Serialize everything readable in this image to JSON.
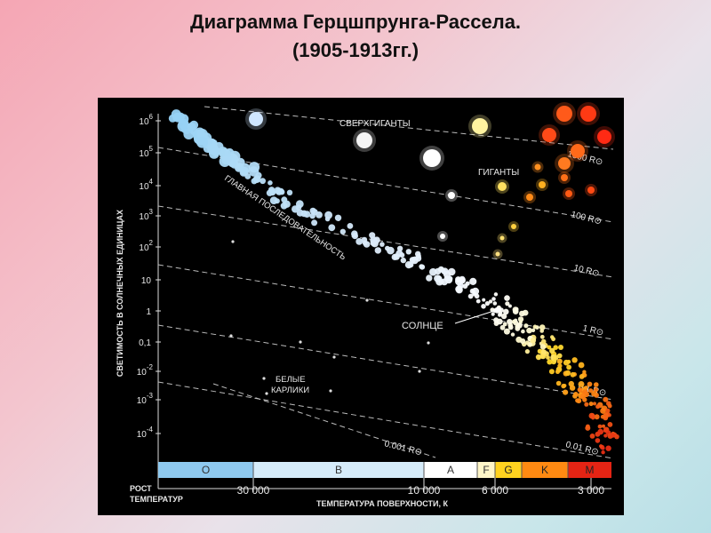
{
  "page": {
    "title_line1": "Диаграмма Герцшпрунга-Рассела.",
    "title_line2": "(1905-1913гг.)"
  },
  "chart_data": {
    "type": "scatter",
    "title": "",
    "ylabel": "СВЕТИМОСТЬ В СОЛНЕЧНЫХ ЕДИНИЦАХ",
    "xlabel": "ТЕМПЕРАТУРА ПОВЕРХНОСТИ, К",
    "x_axis_corner_label": [
      "РОСТ",
      "ТЕМПЕРАТУР"
    ],
    "x_direction": "decreasing",
    "x_ticks": [
      "30 000",
      "10 000",
      "6 000",
      "3 000"
    ],
    "y_scale": "log",
    "y_ticks": [
      {
        "base": "10",
        "exp": "6"
      },
      {
        "base": "10",
        "exp": "5"
      },
      {
        "base": "10",
        "exp": "4"
      },
      {
        "base": "10",
        "exp": "3"
      },
      {
        "base": "10",
        "exp": "2"
      },
      {
        "base": "10",
        "exp": ""
      },
      {
        "base": "1",
        "exp": ""
      },
      {
        "base": "0,1",
        "exp": ""
      },
      {
        "base": "10",
        "exp": "-2"
      },
      {
        "base": "10",
        "exp": "-3"
      },
      {
        "base": "10",
        "exp": "-4"
      }
    ],
    "spectral_classes": [
      {
        "label": "O",
        "color": "#8ec9ef"
      },
      {
        "label": "B",
        "color": "#d6ecfa"
      },
      {
        "label": "A",
        "color": "#ffffff"
      },
      {
        "label": "F",
        "color": "#fff6c8"
      },
      {
        "label": "G",
        "color": "#ffd21f"
      },
      {
        "label": "K",
        "color": "#ff8a12"
      },
      {
        "label": "M",
        "color": "#e42414"
      }
    ],
    "radius_lines": [
      "1000 R⊙",
      "100 R⊙",
      "10 R⊙",
      "1 R⊙",
      "0.1 R⊙",
      "0.01 R⊙",
      "0.001 R⊙"
    ],
    "annotations": {
      "supergiants": "СВЕРХГИГАНТЫ",
      "giants": "ГИГАНТЫ",
      "main_sequence": "ГЛАВНАЯ ПОСЛЕДОВАТЕЛЬНОСТЬ",
      "sun": "СОЛНЦЕ",
      "white_dwarfs": [
        "БЕЛЫЕ",
        "КАРЛИКИ"
      ]
    },
    "groups": [
      "main sequence",
      "giants",
      "supergiants",
      "white dwarfs"
    ],
    "grid": false,
    "background": "#000000"
  }
}
